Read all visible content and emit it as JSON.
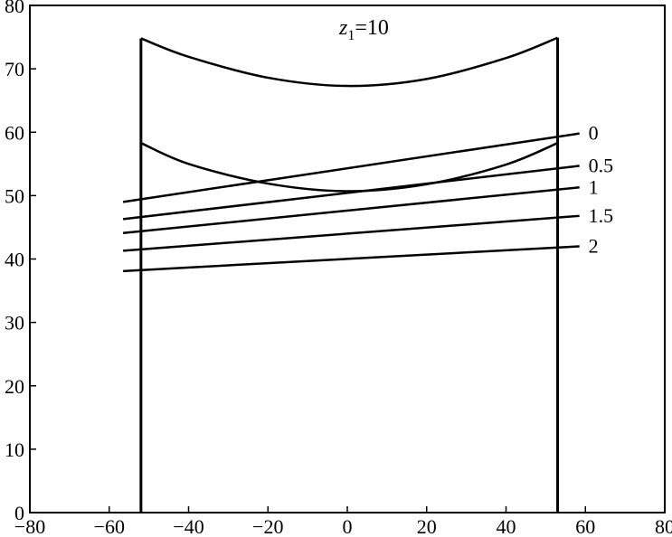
{
  "chart_data": {
    "type": "line",
    "title_var": "z",
    "title_sub": "1",
    "title_rest": "=10",
    "xlim": [
      -80,
      80
    ],
    "ylim": [
      0,
      80
    ],
    "xticks": [
      -80,
      -60,
      -40,
      -20,
      0,
      20,
      40,
      60,
      80
    ],
    "yticks": [
      0,
      10,
      20,
      30,
      40,
      50,
      60,
      70,
      80
    ],
    "xtick_labels": [
      "−80",
      "−60",
      "−40",
      "−20",
      "0",
      "20",
      "40",
      "60",
      "80"
    ],
    "ytick_labels": [
      "0",
      "10",
      "20",
      "30",
      "40",
      "50",
      "60",
      "70",
      "80"
    ],
    "grid": false,
    "legend": "none",
    "boundary": {
      "x_left": -52,
      "x_right": 53,
      "upper_curve": [
        [
          -52,
          74.8
        ],
        [
          -40,
          71.9
        ],
        [
          -20,
          68.6
        ],
        [
          0,
          67.3
        ],
        [
          20,
          68.4
        ],
        [
          40,
          71.7
        ],
        [
          53,
          74.9
        ]
      ],
      "lower_curve": [
        [
          -52,
          58.3
        ],
        [
          -40,
          55.0
        ],
        [
          -20,
          51.9
        ],
        [
          0,
          50.7
        ],
        [
          20,
          51.8
        ],
        [
          40,
          54.9
        ],
        [
          53,
          58.3
        ]
      ]
    },
    "series": [
      {
        "name": "0",
        "x": [
          -56.5,
          58.5
        ],
        "y": [
          49.0,
          59.8
        ]
      },
      {
        "name": "0.5",
        "x": [
          -56.5,
          58.5
        ],
        "y": [
          46.3,
          54.7
        ]
      },
      {
        "name": "1",
        "x": [
          -56.5,
          58.5
        ],
        "y": [
          44.1,
          51.3
        ]
      },
      {
        "name": "1.5",
        "x": [
          -56.5,
          58.5
        ],
        "y": [
          41.3,
          46.8
        ]
      },
      {
        "name": "2",
        "x": [
          -56.5,
          58.5
        ],
        "y": [
          38.1,
          42.0
        ]
      }
    ]
  }
}
